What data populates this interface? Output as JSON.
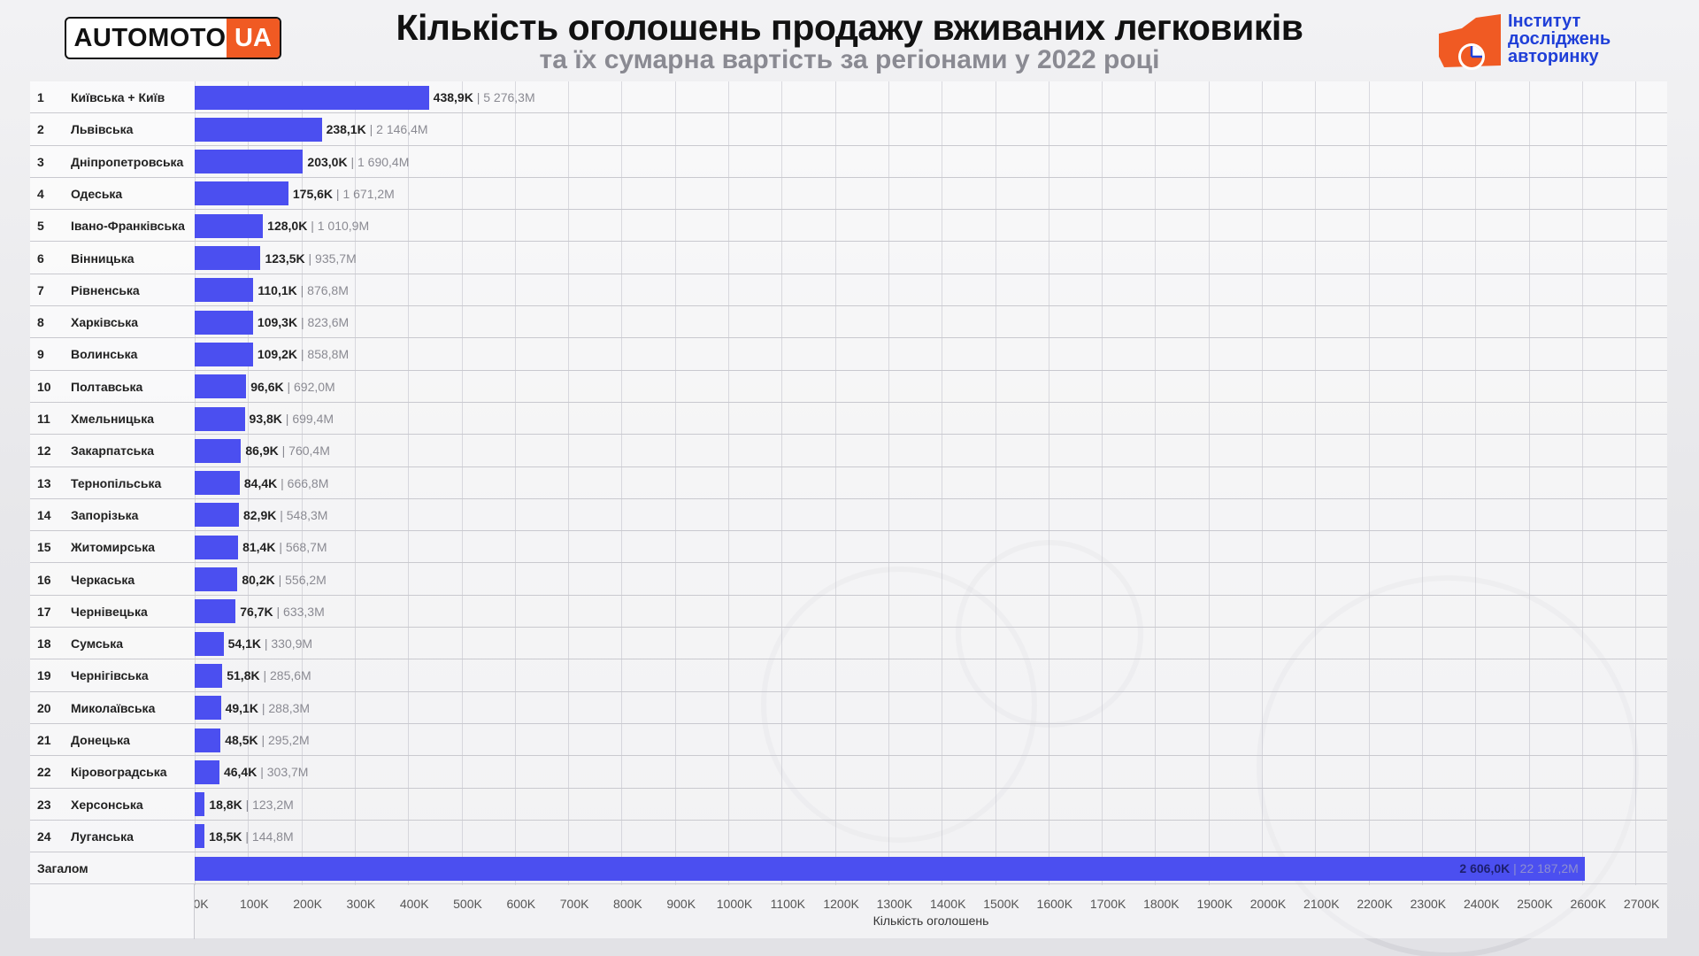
{
  "header": {
    "logo_left": "AUTOMOTO",
    "logo_right": "UA",
    "title": "Кількість оголошень продажу вживаних легковиків",
    "subtitle": "та їх сумарна вартість за регіонами у 2022 році",
    "institute": [
      "Інститут",
      "досліджень",
      "авторинку"
    ]
  },
  "colors": {
    "bar": "#4b4ff0",
    "brand_orange": "#f05a23",
    "institute_blue": "#1f3fd8"
  },
  "chart_data": {
    "type": "bar",
    "orientation": "horizontal",
    "title": "Кількість оголошень продажу вживаних легковиків",
    "subtitle": "та їх сумарна вартість за регіонами у 2022 році",
    "xlabel": "Кількість оголошень",
    "xlim": [
      0,
      2700
    ],
    "x_unit": "K",
    "x_ticks": [
      "0K",
      "100K",
      "200K",
      "300K",
      "400K",
      "500K",
      "600K",
      "700K",
      "800K",
      "900K",
      "1000K",
      "1100K",
      "1200K",
      "1300K",
      "1400K",
      "1500K",
      "1600K",
      "1700K",
      "1800K",
      "1900K",
      "2000K",
      "2100K",
      "2200K",
      "2300K",
      "2400K",
      "2500K",
      "2600K",
      "2700K"
    ],
    "grid": true,
    "rows": [
      {
        "rank": "1",
        "region": "Київська + Київ",
        "value": 438.9,
        "count_label": "438,9K",
        "sum_label": "5 276,3M"
      },
      {
        "rank": "2",
        "region": "Львівська",
        "value": 238.1,
        "count_label": "238,1K",
        "sum_label": "2 146,4M"
      },
      {
        "rank": "3",
        "region": "Дніпропетровська",
        "value": 203.0,
        "count_label": "203,0K",
        "sum_label": "1 690,4M"
      },
      {
        "rank": "4",
        "region": "Одеська",
        "value": 175.6,
        "count_label": "175,6K",
        "sum_label": "1 671,2M"
      },
      {
        "rank": "5",
        "region": "Івано-Франківська",
        "value": 128.0,
        "count_label": "128,0K",
        "sum_label": "1 010,9M"
      },
      {
        "rank": "6",
        "region": "Вінницька",
        "value": 123.5,
        "count_label": "123,5K",
        "sum_label": "935,7M"
      },
      {
        "rank": "7",
        "region": "Рівненська",
        "value": 110.1,
        "count_label": "110,1K",
        "sum_label": "876,8M"
      },
      {
        "rank": "8",
        "region": "Харківська",
        "value": 109.3,
        "count_label": "109,3K",
        "sum_label": "823,6M"
      },
      {
        "rank": "9",
        "region": "Волинська",
        "value": 109.2,
        "count_label": "109,2K",
        "sum_label": "858,8M"
      },
      {
        "rank": "10",
        "region": "Полтавська",
        "value": 96.6,
        "count_label": "96,6K",
        "sum_label": "692,0M"
      },
      {
        "rank": "11",
        "region": "Хмельницька",
        "value": 93.8,
        "count_label": "93,8K",
        "sum_label": "699,4M"
      },
      {
        "rank": "12",
        "region": "Закарпатська",
        "value": 86.9,
        "count_label": "86,9K",
        "sum_label": "760,4M"
      },
      {
        "rank": "13",
        "region": "Тернопільська",
        "value": 84.4,
        "count_label": "84,4K",
        "sum_label": "666,8M"
      },
      {
        "rank": "14",
        "region": "Запорізька",
        "value": 82.9,
        "count_label": "82,9K",
        "sum_label": "548,3M"
      },
      {
        "rank": "15",
        "region": "Житомирська",
        "value": 81.4,
        "count_label": "81,4K",
        "sum_label": "568,7M"
      },
      {
        "rank": "16",
        "region": "Черкаська",
        "value": 80.2,
        "count_label": "80,2K",
        "sum_label": "556,2M"
      },
      {
        "rank": "17",
        "region": "Чернівецька",
        "value": 76.7,
        "count_label": "76,7K",
        "sum_label": "633,3M"
      },
      {
        "rank": "18",
        "region": "Сумська",
        "value": 54.1,
        "count_label": "54,1K",
        "sum_label": "330,9M"
      },
      {
        "rank": "19",
        "region": "Чернігівська",
        "value": 51.8,
        "count_label": "51,8K",
        "sum_label": "285,6M"
      },
      {
        "rank": "20",
        "region": "Миколаївська",
        "value": 49.1,
        "count_label": "49,1K",
        "sum_label": "288,3M"
      },
      {
        "rank": "21",
        "region": "Донецька",
        "value": 48.5,
        "count_label": "48,5K",
        "sum_label": "295,2M"
      },
      {
        "rank": "22",
        "region": "Кіровоградська",
        "value": 46.4,
        "count_label": "46,4K",
        "sum_label": "303,7M"
      },
      {
        "rank": "23",
        "region": "Херсонська",
        "value": 18.8,
        "count_label": "18,8K",
        "sum_label": "123,2M"
      },
      {
        "rank": "24",
        "region": "Луганська",
        "value": 18.5,
        "count_label": "18,5K",
        "sum_label": "144,8M"
      }
    ],
    "total": {
      "region": "Загалом",
      "value": 2606.0,
      "count_label": "2 606,0K",
      "sum_label": "22 187,2M"
    }
  }
}
